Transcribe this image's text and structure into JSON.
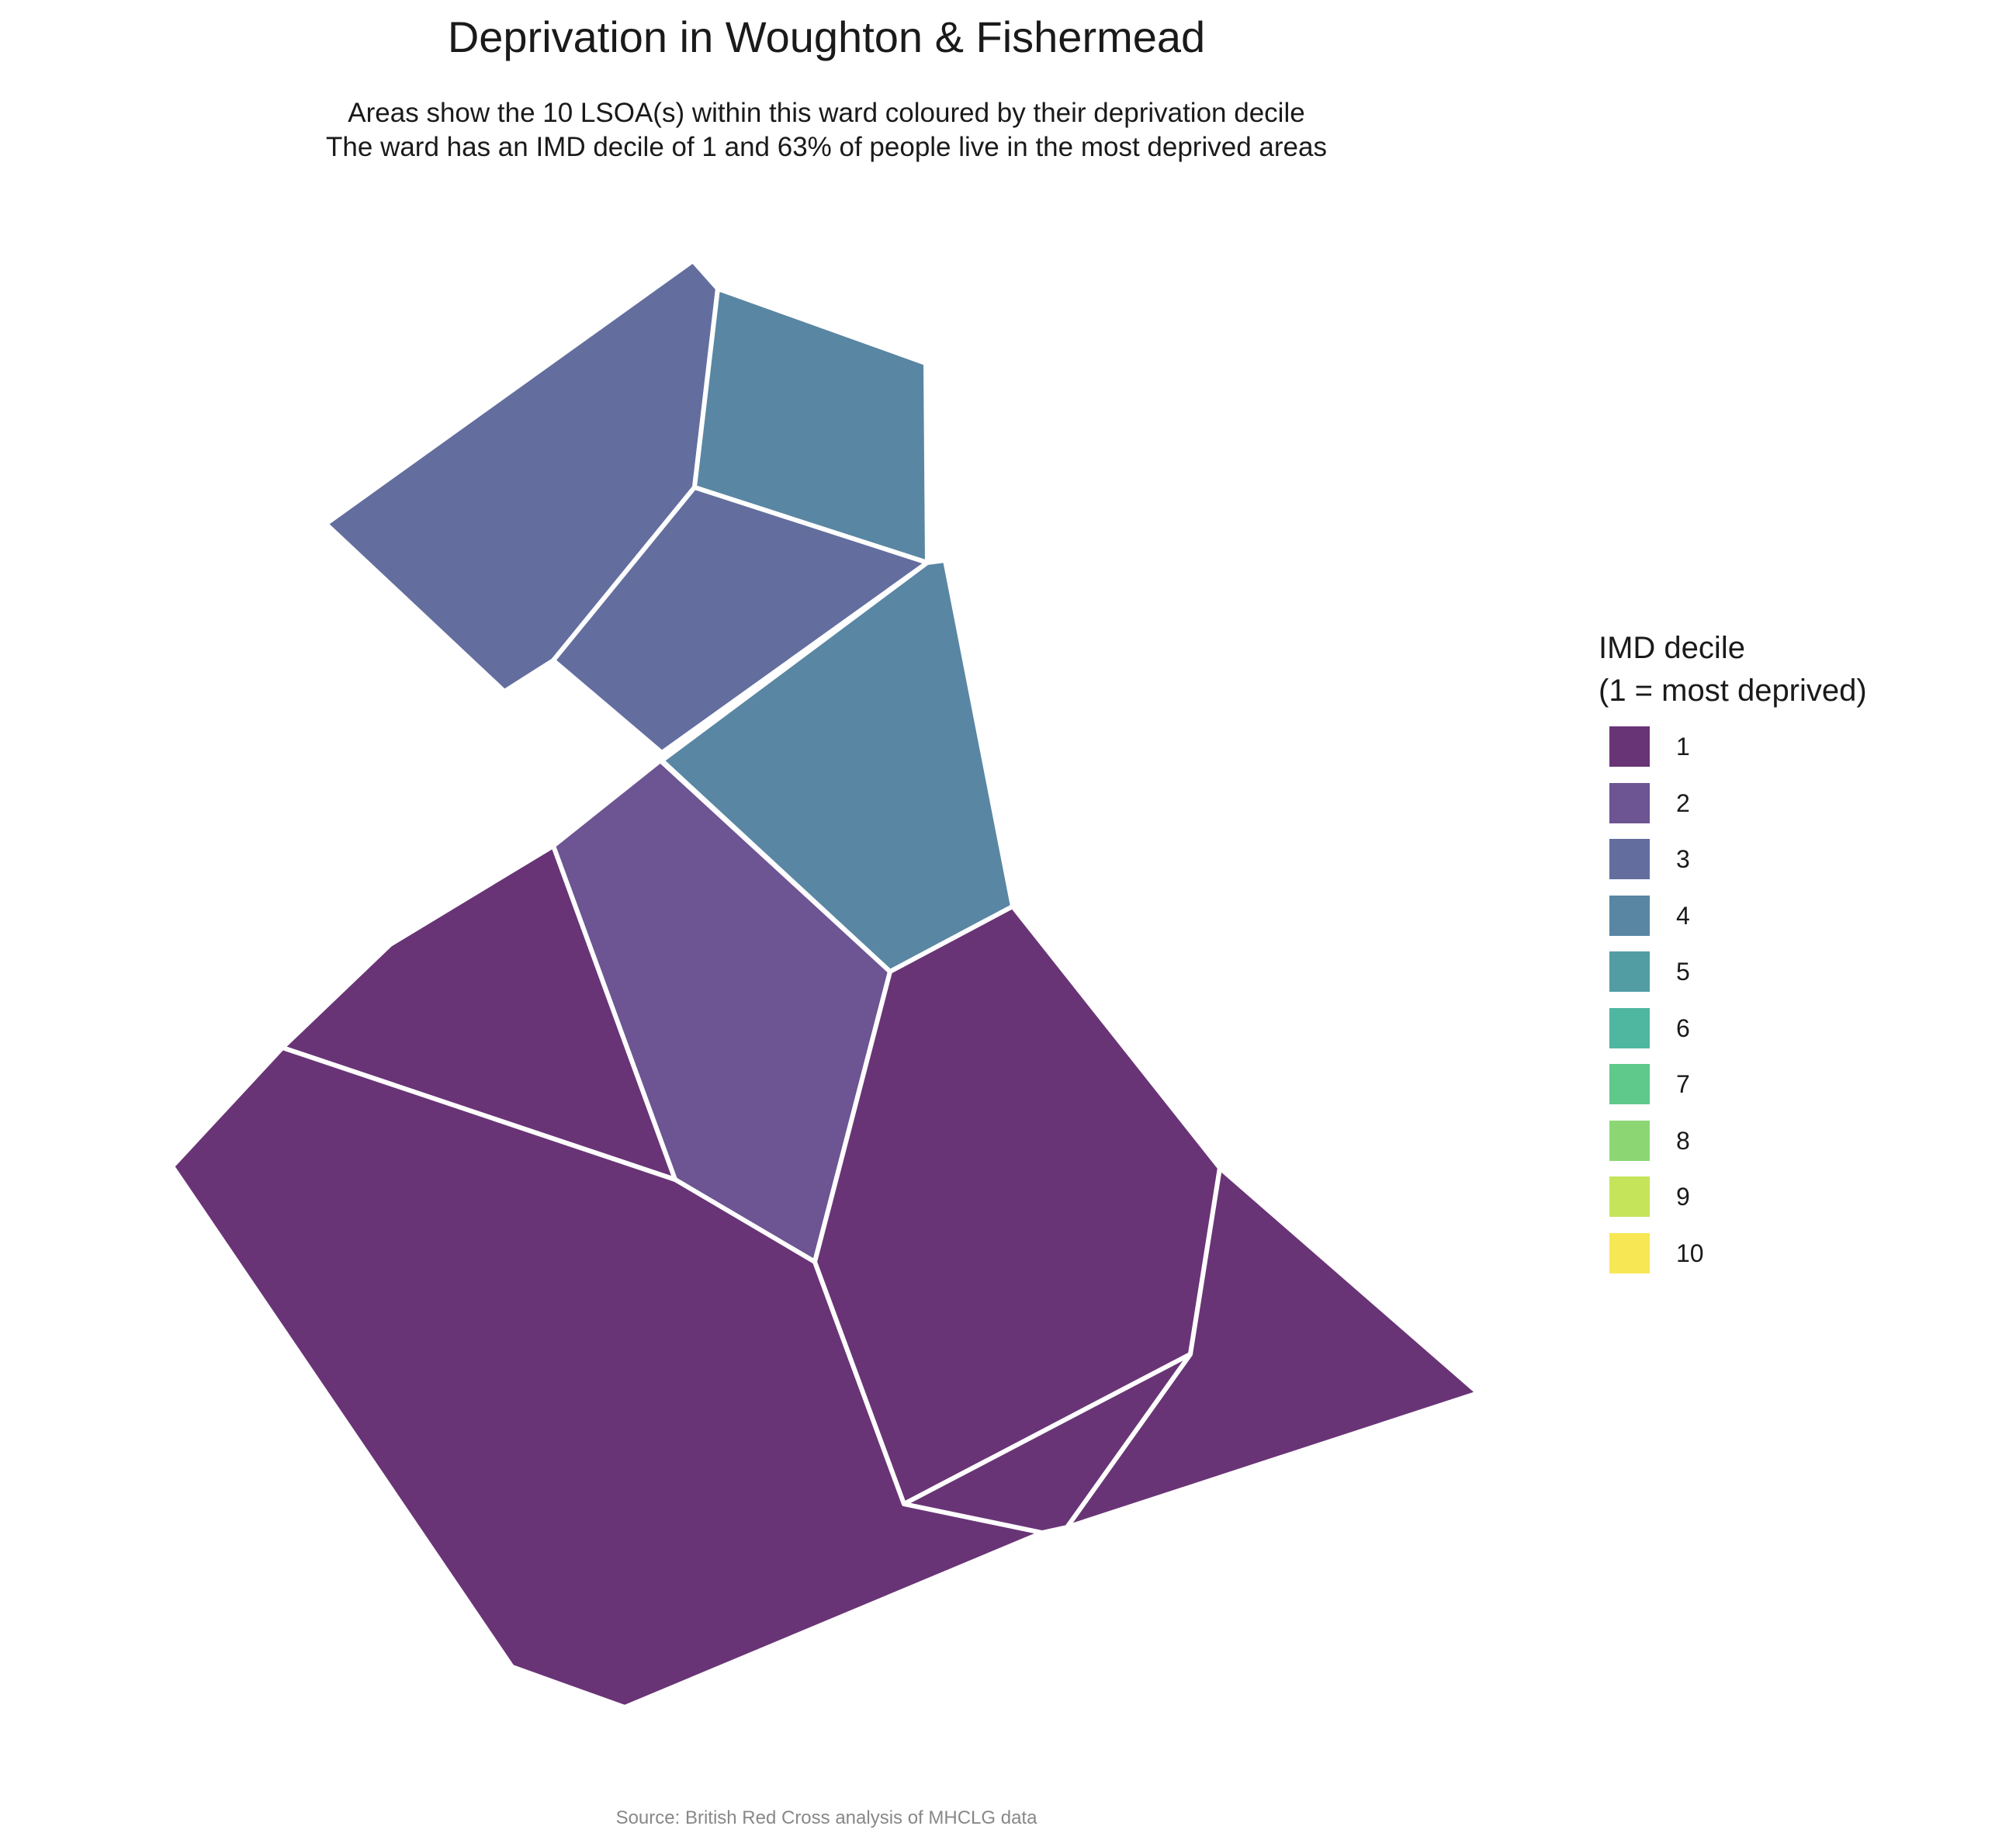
{
  "title": "Deprivation in Woughton & Fishermead",
  "subtitle_line1": "Areas show the 10 LSOA(s) within this ward coloured by their deprivation decile",
  "subtitle_line2": "The ward has an IMD decile of 1 and 63% of people live in the most deprived areas",
  "caption": "Source: British Red Cross analysis of MHCLG data",
  "legend": {
    "title_line1": "IMD decile",
    "title_line2": "(1 = most deprived)",
    "items": [
      {
        "label": "1",
        "color": "#693476"
      },
      {
        "label": "2",
        "color": "#6D5492"
      },
      {
        "label": "3",
        "color": "#636E9E"
      },
      {
        "label": "4",
        "color": "#5986A3"
      },
      {
        "label": "5",
        "color": "#529CA4"
      },
      {
        "label": "6",
        "color": "#4FB6A0"
      },
      {
        "label": "7",
        "color": "#5FC98B"
      },
      {
        "label": "8",
        "color": "#8CD774"
      },
      {
        "label": "9",
        "color": "#C5E45A"
      },
      {
        "label": "10",
        "color": "#F8E755"
      }
    ]
  },
  "map": {
    "ward": "Woughton & Fishermead",
    "lsoa_count": 10,
    "areas": [
      {
        "name": "north-west-large",
        "decile": 3,
        "color": "#636E9E"
      },
      {
        "name": "north-top",
        "decile": 4,
        "color": "#5986A3"
      },
      {
        "name": "north-middle",
        "decile": 3,
        "color": "#636E9E"
      },
      {
        "name": "centre-east",
        "decile": 4,
        "color": "#5986A3"
      },
      {
        "name": "centre",
        "decile": 2,
        "color": "#6D5492"
      },
      {
        "name": "west",
        "decile": 1,
        "color": "#693476"
      },
      {
        "name": "south-large",
        "decile": 1,
        "color": "#693476"
      },
      {
        "name": "east",
        "decile": 1,
        "color": "#693476"
      },
      {
        "name": "far-east",
        "decile": 1,
        "color": "#693476"
      },
      {
        "name": "south-small",
        "decile": 1,
        "color": "#693476"
      }
    ]
  }
}
